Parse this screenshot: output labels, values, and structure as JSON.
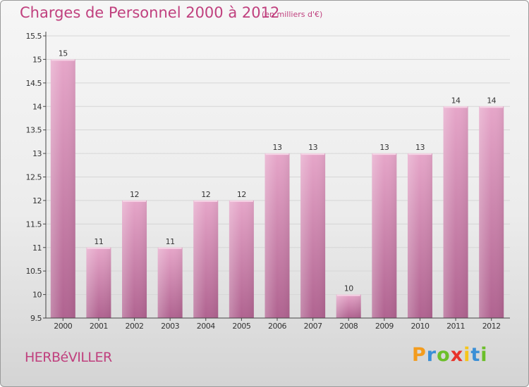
{
  "title": "Charges de Personnel 2000 à 2012",
  "subtitle": "(en milliers d'€)",
  "town": "HERBéVILLER",
  "logo": {
    "letters": [
      "P",
      "r",
      "o",
      "x",
      "i",
      "t",
      "i"
    ],
    "colors": [
      "#f39c1e",
      "#3b8fd6",
      "#6cbf2a",
      "#e8332a",
      "#f6c51a",
      "#3b8fd6",
      "#6cbf2a"
    ]
  },
  "colors": {
    "bar": "#c9709f",
    "bar_light": "#e6a6c9",
    "bar_dark": "#b06390",
    "text": "#c0407e"
  },
  "chart_data": {
    "type": "bar",
    "categories": [
      "2000",
      "2001",
      "2002",
      "2003",
      "2004",
      "2005",
      "2006",
      "2007",
      "2008",
      "2009",
      "2010",
      "2011",
      "2012"
    ],
    "values": [
      15,
      11,
      12,
      11,
      12,
      12,
      13,
      13,
      10,
      13,
      13,
      14,
      14
    ],
    "value_labels": [
      "15",
      "11",
      "12",
      "11",
      "12",
      "12",
      "13",
      "13",
      "10",
      "13",
      "13",
      "14",
      "14"
    ],
    "title": "Charges de Personnel 2000 à 2012",
    "subtitle": "(en milliers d'€)",
    "ylim": [
      9.5,
      15.5
    ],
    "yticks": [
      "9.5",
      "10",
      "10.5",
      "11",
      "11.5",
      "12",
      "12.5",
      "13",
      "13.5",
      "14",
      "14.5",
      "15",
      "15.5"
    ],
    "grid": true
  }
}
